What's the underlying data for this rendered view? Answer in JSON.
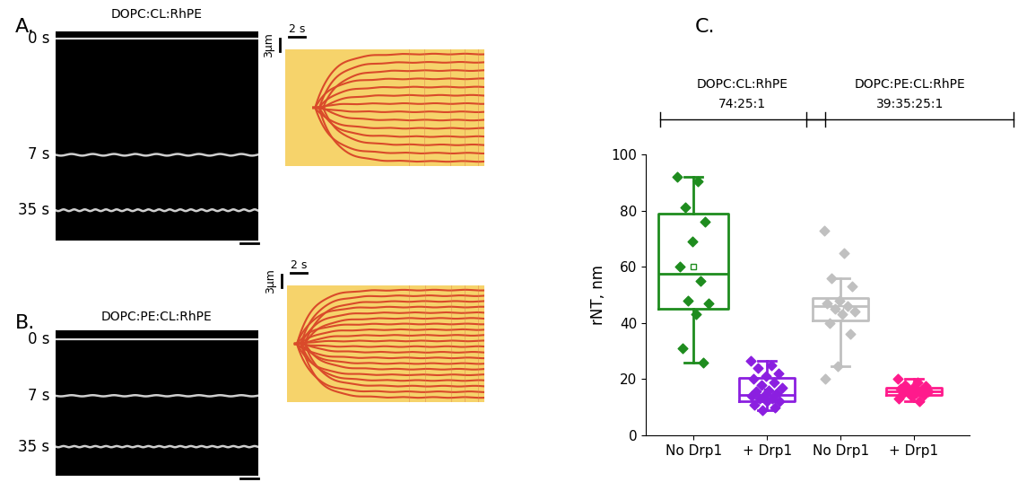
{
  "panels": [
    {
      "label": "A.",
      "lipids": "DOPC:CL:RhPE",
      "times": [
        "0 s",
        "7 s",
        "35 s"
      ],
      "kymograph_scale": {
        "space": "3µm",
        "time": "2 s"
      }
    },
    {
      "label": "B.",
      "lipids": "DOPC:PE:CL:RhPE",
      "times": [
        "0 s",
        "7 s",
        "35 s"
      ],
      "kymograph_scale": {
        "space": "3µm",
        "time": "2 s"
      }
    }
  ],
  "chart_data": {
    "type": "box",
    "label": "C.",
    "ylabel": "rNT, nm",
    "ylim": [
      0,
      100
    ],
    "yticks": [
      0,
      20,
      40,
      60,
      80,
      100
    ],
    "groups": [
      {
        "name": "DOPC:CL:RhPE",
        "ratio": "74:25:1",
        "series": [
          {
            "category": "No Drp1",
            "color": "#1e8c1e",
            "q1": 45,
            "median": 57.5,
            "q3": 79,
            "whislo": 26,
            "whishi": 92,
            "mean": 60,
            "values": [
              92,
              90.5,
              81,
              76,
              69,
              60,
              55,
              48,
              47,
              43,
              31,
              26
            ]
          },
          {
            "category": "+ Drp1",
            "color": "#8b1fe0",
            "q1": 12,
            "median": 14.5,
            "q3": 20.5,
            "whislo": 9,
            "whishi": 26.5,
            "mean": 15.5,
            "values": [
              26.5,
              25,
              24,
              22,
              21,
              20,
              19,
              18,
              17,
              16,
              15.5,
              15,
              14,
              14,
              13,
              13,
              12,
              12,
              11,
              10,
              9
            ]
          }
        ]
      },
      {
        "name": "DOPC:PE:CL:RhPE",
        "ratio": "39:35:25:1",
        "series": [
          {
            "category": "No Drp1",
            "color": "#c0c0c0",
            "q1": 41,
            "median": 46,
            "q3": 49,
            "whislo": 24.5,
            "whishi": 56,
            "mean": 45,
            "values": [
              73,
              65,
              56,
              53,
              48,
              47,
              46,
              45,
              44,
              43,
              40,
              36,
              24.5,
              20
            ]
          },
          {
            "category": "+ Drp1",
            "color": "#ff1a8c",
            "q1": 14.5,
            "median": 15.5,
            "q3": 17,
            "whislo": 12,
            "whishi": 20,
            "mean": 16,
            "values": [
              20,
              19,
              18,
              17.5,
              17,
              16.5,
              16,
              16,
              15.5,
              15,
              15,
              14.5,
              14,
              13,
              12
            ]
          }
        ]
      }
    ]
  }
}
